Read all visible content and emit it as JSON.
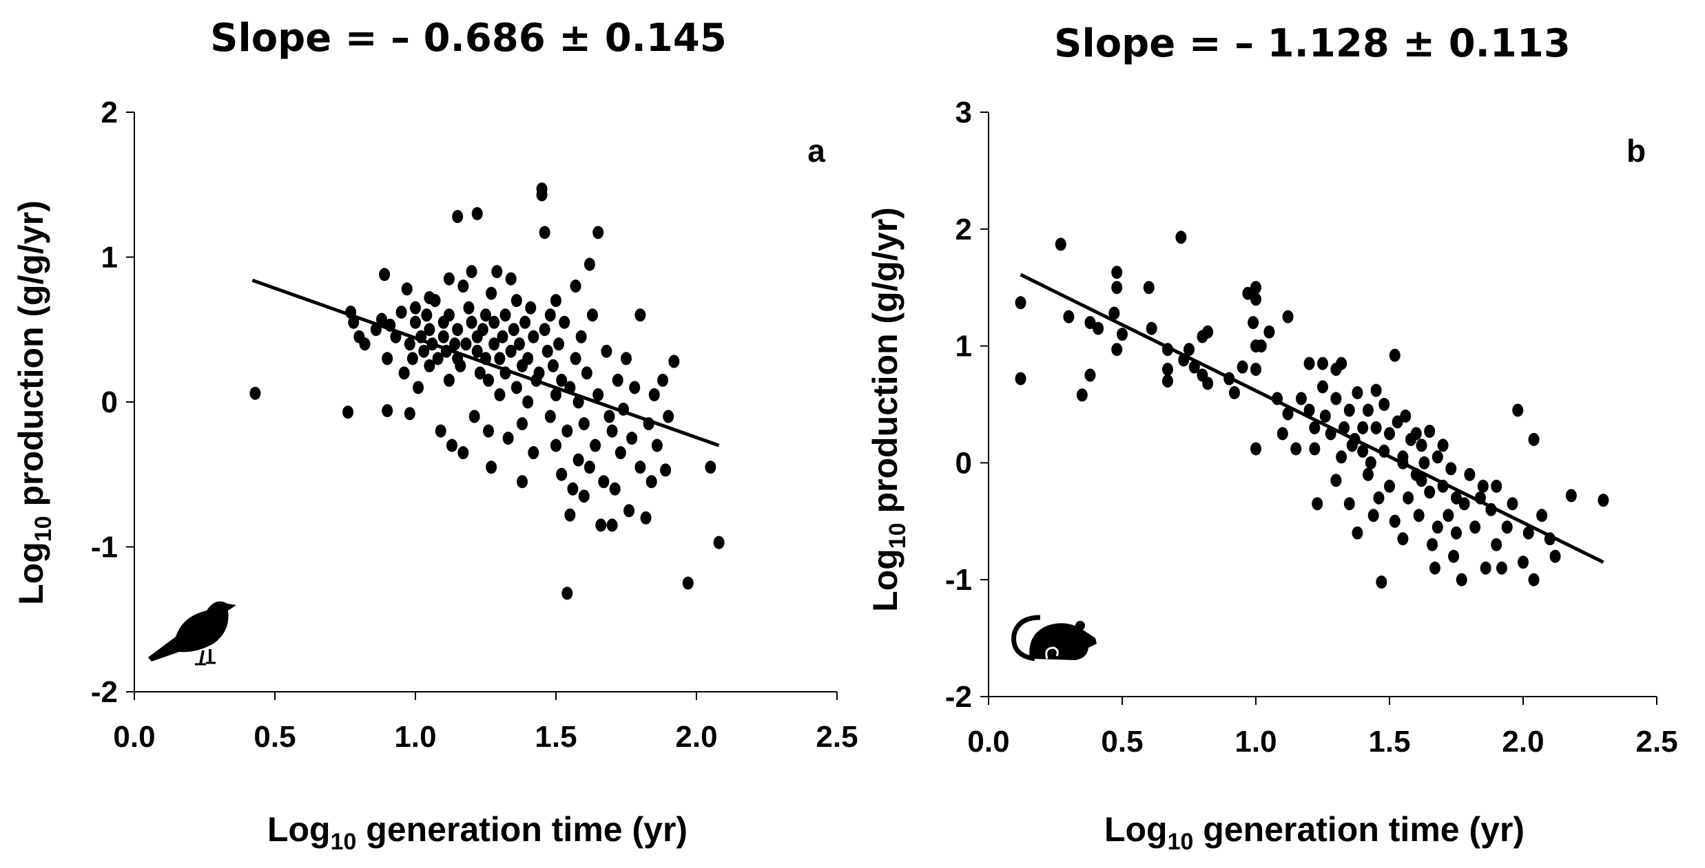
{
  "chart_data": [
    {
      "type": "scatter",
      "panel_label": "a",
      "title": "Slope = – 0.686 ± 0.145",
      "xlabel": {
        "main": "Log",
        "sub": "10",
        "rest": " generation time (yr)"
      },
      "ylabel": {
        "main": "Log",
        "sub": "10",
        "rest": " production (g/g/yr)"
      },
      "xlim": [
        0.0,
        2.5
      ],
      "ylim": [
        -2,
        2
      ],
      "xticks": [
        "0.0",
        "0.5",
        "1.0",
        "1.5",
        "2.0",
        "2.5"
      ],
      "yticks": [
        "-2",
        "-1",
        "0",
        "1",
        "2"
      ],
      "grid": false,
      "icon": "bird-icon",
      "regression_line": {
        "x": [
          0.42,
          2.08
        ],
        "y": [
          0.84,
          -0.3
        ]
      },
      "points": [
        [
          0.43,
          0.06
        ],
        [
          0.76,
          -0.07
        ],
        [
          0.77,
          0.62
        ],
        [
          0.78,
          0.55
        ],
        [
          0.8,
          0.45
        ],
        [
          0.82,
          0.4
        ],
        [
          0.86,
          0.5
        ],
        [
          0.88,
          0.57
        ],
        [
          0.89,
          0.88
        ],
        [
          0.9,
          0.3
        ],
        [
          0.9,
          -0.06
        ],
        [
          0.91,
          0.53
        ],
        [
          0.93,
          0.45
        ],
        [
          0.95,
          0.62
        ],
        [
          0.96,
          0.2
        ],
        [
          0.97,
          0.78
        ],
        [
          0.98,
          -0.08
        ],
        [
          0.98,
          0.4
        ],
        [
          0.99,
          0.3
        ],
        [
          1.0,
          0.55
        ],
        [
          1.0,
          0.65
        ],
        [
          1.01,
          0.1
        ],
        [
          1.02,
          0.45
        ],
        [
          1.03,
          0.35
        ],
        [
          1.04,
          0.6
        ],
        [
          1.05,
          0.25
        ],
        [
          1.05,
          0.5
        ],
        [
          1.06,
          0.4
        ],
        [
          1.07,
          0.7
        ],
        [
          1.08,
          0.3
        ],
        [
          1.09,
          -0.2
        ],
        [
          1.1,
          0.45
        ],
        [
          1.1,
          0.55
        ],
        [
          1.11,
          0.35
        ],
        [
          1.12,
          0.15
        ],
        [
          1.12,
          0.6
        ],
        [
          1.13,
          -0.3
        ],
        [
          1.14,
          0.4
        ],
        [
          1.15,
          0.5
        ],
        [
          1.15,
          0.3
        ],
        [
          1.16,
          0.25
        ],
        [
          1.17,
          0.8
        ],
        [
          1.17,
          -0.35
        ],
        [
          1.18,
          0.4
        ],
        [
          1.19,
          0.65
        ],
        [
          1.2,
          0.55
        ],
        [
          1.2,
          0.9
        ],
        [
          1.21,
          -0.1
        ],
        [
          1.22,
          0.35
        ],
        [
          1.22,
          0.45
        ],
        [
          1.23,
          0.2
        ],
        [
          1.24,
          0.5
        ],
        [
          1.25,
          0.6
        ],
        [
          1.25,
          0.3
        ],
        [
          1.26,
          0.15
        ],
        [
          1.26,
          -0.2
        ],
        [
          1.27,
          0.75
        ],
        [
          1.28,
          0.4
        ],
        [
          1.28,
          0.55
        ],
        [
          1.29,
          0.9
        ],
        [
          1.3,
          0.3
        ],
        [
          1.3,
          0.05
        ],
        [
          1.31,
          0.45
        ],
        [
          1.32,
          0.2
        ],
        [
          1.32,
          0.6
        ],
        [
          1.33,
          -0.25
        ],
        [
          1.34,
          0.35
        ],
        [
          1.35,
          0.5
        ],
        [
          1.36,
          0.1
        ],
        [
          1.36,
          0.7
        ],
        [
          1.37,
          0.4
        ],
        [
          1.38,
          -0.15
        ],
        [
          1.38,
          0.25
        ],
        [
          1.39,
          0.55
        ],
        [
          1.4,
          0.3
        ],
        [
          1.4,
          0.0
        ],
        [
          1.41,
          0.65
        ],
        [
          1.42,
          0.45
        ],
        [
          1.42,
          -0.35
        ],
        [
          1.43,
          0.15
        ],
        [
          1.44,
          0.2
        ],
        [
          1.45,
          1.47
        ],
        [
          1.45,
          1.43
        ],
        [
          1.46,
          1.17
        ],
        [
          1.46,
          0.5
        ],
        [
          1.47,
          0.35
        ],
        [
          1.48,
          -0.1
        ],
        [
          1.48,
          0.6
        ],
        [
          1.49,
          0.25
        ],
        [
          1.5,
          0.05
        ],
        [
          1.5,
          -0.3
        ],
        [
          1.51,
          0.4
        ],
        [
          1.52,
          0.15
        ],
        [
          1.52,
          -0.5
        ],
        [
          1.53,
          0.55
        ],
        [
          1.54,
          -1.32
        ],
        [
          1.54,
          -0.2
        ],
        [
          1.55,
          0.1
        ],
        [
          1.56,
          -0.6
        ],
        [
          1.57,
          0.3
        ],
        [
          1.58,
          0.0
        ],
        [
          1.58,
          -0.4
        ],
        [
          1.59,
          0.45
        ],
        [
          1.6,
          -0.15
        ],
        [
          1.61,
          0.2
        ],
        [
          1.62,
          -0.45
        ],
        [
          1.62,
          0.95
        ],
        [
          1.63,
          0.6
        ],
        [
          1.64,
          -0.3
        ],
        [
          1.65,
          1.17
        ],
        [
          1.65,
          0.05
        ],
        [
          1.66,
          -0.85
        ],
        [
          1.67,
          -0.55
        ],
        [
          1.68,
          0.35
        ],
        [
          1.69,
          -0.1
        ],
        [
          1.7,
          -0.2
        ],
        [
          1.71,
          -0.6
        ],
        [
          1.72,
          0.15
        ],
        [
          1.73,
          -0.35
        ],
        [
          1.74,
          -0.05
        ],
        [
          1.75,
          0.3
        ],
        [
          1.76,
          -0.75
        ],
        [
          1.77,
          -0.25
        ],
        [
          1.78,
          0.1
        ],
        [
          1.8,
          0.6
        ],
        [
          1.8,
          -0.45
        ],
        [
          1.82,
          -0.8
        ],
        [
          1.83,
          -0.15
        ],
        [
          1.84,
          -0.55
        ],
        [
          1.85,
          0.05
        ],
        [
          1.86,
          -0.3
        ],
        [
          1.88,
          0.15
        ],
        [
          1.89,
          -0.47
        ],
        [
          1.9,
          -0.1
        ],
        [
          1.92,
          0.28
        ],
        [
          1.97,
          -1.25
        ],
        [
          2.05,
          -0.45
        ],
        [
          2.08,
          -0.97
        ],
        [
          1.15,
          1.28
        ],
        [
          1.22,
          1.3
        ],
        [
          1.05,
          0.72
        ],
        [
          1.12,
          0.85
        ],
        [
          1.34,
          0.85
        ],
        [
          1.38,
          -0.55
        ],
        [
          1.55,
          -0.78
        ],
        [
          1.7,
          -0.85
        ],
        [
          1.57,
          0.8
        ],
        [
          1.5,
          0.7
        ],
        [
          1.27,
          -0.45
        ],
        [
          1.6,
          -0.65
        ]
      ]
    },
    {
      "type": "scatter",
      "panel_label": "b",
      "title": "Slope = – 1.128 ± 0.113",
      "xlabel": {
        "main": "Log",
        "sub": "10",
        "rest": " generation time (yr)"
      },
      "ylabel": {
        "main": "Log",
        "sub": "10",
        "rest": " production (g/g/yr)"
      },
      "xlim": [
        0.0,
        2.5
      ],
      "ylim": [
        -2,
        3
      ],
      "xticks": [
        "0.0",
        "0.5",
        "1.0",
        "1.5",
        "2.0",
        "2.5"
      ],
      "yticks": [
        "-2",
        "-1",
        "0",
        "1",
        "2",
        "3"
      ],
      "grid": false,
      "icon": "rat-icon",
      "regression_line": {
        "x": [
          0.12,
          2.3
        ],
        "y": [
          1.61,
          -0.85
        ]
      },
      "points": [
        [
          0.12,
          1.37
        ],
        [
          0.12,
          0.72
        ],
        [
          0.27,
          1.87
        ],
        [
          0.3,
          1.25
        ],
        [
          0.35,
          0.58
        ],
        [
          0.38,
          0.75
        ],
        [
          0.38,
          1.2
        ],
        [
          0.41,
          1.15
        ],
        [
          0.47,
          1.28
        ],
        [
          0.48,
          0.97
        ],
        [
          0.48,
          1.5
        ],
        [
          0.48,
          1.63
        ],
        [
          0.5,
          1.1
        ],
        [
          0.6,
          1.5
        ],
        [
          0.61,
          1.15
        ],
        [
          0.67,
          0.97
        ],
        [
          0.67,
          0.8
        ],
        [
          0.67,
          0.7
        ],
        [
          0.72,
          1.93
        ],
        [
          0.73,
          0.88
        ],
        [
          0.75,
          0.97
        ],
        [
          0.77,
          0.82
        ],
        [
          0.8,
          0.75
        ],
        [
          0.8,
          1.08
        ],
        [
          0.82,
          1.12
        ],
        [
          0.82,
          0.68
        ],
        [
          0.9,
          0.72
        ],
        [
          0.92,
          0.6
        ],
        [
          0.95,
          0.82
        ],
        [
          0.97,
          1.45
        ],
        [
          0.99,
          1.2
        ],
        [
          1.0,
          1.5
        ],
        [
          1.0,
          1.4
        ],
        [
          1.0,
          1.0
        ],
        [
          1.0,
          0.8
        ],
        [
          1.0,
          0.12
        ],
        [
          1.02,
          1.0
        ],
        [
          1.05,
          1.12
        ],
        [
          1.08,
          0.55
        ],
        [
          1.1,
          0.25
        ],
        [
          1.12,
          0.42
        ],
        [
          1.12,
          1.25
        ],
        [
          1.15,
          0.12
        ],
        [
          1.17,
          0.55
        ],
        [
          1.2,
          0.85
        ],
        [
          1.2,
          0.45
        ],
        [
          1.22,
          0.3
        ],
        [
          1.22,
          0.12
        ],
        [
          1.23,
          -0.35
        ],
        [
          1.25,
          0.65
        ],
        [
          1.25,
          0.85
        ],
        [
          1.26,
          0.4
        ],
        [
          1.28,
          0.25
        ],
        [
          1.3,
          0.55
        ],
        [
          1.3,
          -0.15
        ],
        [
          1.32,
          0.85
        ],
        [
          1.32,
          0.05
        ],
        [
          1.33,
          0.3
        ],
        [
          1.35,
          0.45
        ],
        [
          1.35,
          -0.35
        ],
        [
          1.37,
          0.2
        ],
        [
          1.38,
          0.6
        ],
        [
          1.38,
          -0.6
        ],
        [
          1.4,
          0.3
        ],
        [
          1.4,
          0.1
        ],
        [
          1.42,
          0.45
        ],
        [
          1.42,
          -0.1
        ],
        [
          1.43,
          0.0
        ],
        [
          1.45,
          0.62
        ],
        [
          1.45,
          0.3
        ],
        [
          1.46,
          -0.3
        ],
        [
          1.47,
          -1.02
        ],
        [
          1.48,
          0.1
        ],
        [
          1.48,
          0.5
        ],
        [
          1.5,
          -0.2
        ],
        [
          1.5,
          0.25
        ],
        [
          1.52,
          0.92
        ],
        [
          1.52,
          -0.5
        ],
        [
          1.53,
          0.35
        ],
        [
          1.55,
          0.05
        ],
        [
          1.55,
          -0.65
        ],
        [
          1.56,
          0.4
        ],
        [
          1.57,
          -0.3
        ],
        [
          1.58,
          0.2
        ],
        [
          1.6,
          -0.1
        ],
        [
          1.6,
          0.25
        ],
        [
          1.61,
          -0.45
        ],
        [
          1.62,
          0.15
        ],
        [
          1.63,
          0.0
        ],
        [
          1.65,
          -0.25
        ],
        [
          1.65,
          0.27
        ],
        [
          1.67,
          -0.9
        ],
        [
          1.68,
          -0.55
        ],
        [
          1.68,
          0.05
        ],
        [
          1.7,
          -0.2
        ],
        [
          1.7,
          0.15
        ],
        [
          1.72,
          -0.45
        ],
        [
          1.73,
          -0.05
        ],
        [
          1.75,
          -0.3
        ],
        [
          1.75,
          -0.6
        ],
        [
          1.77,
          -1.0
        ],
        [
          1.78,
          -0.35
        ],
        [
          1.8,
          -0.1
        ],
        [
          1.82,
          -0.55
        ],
        [
          1.84,
          -0.3
        ],
        [
          1.85,
          -0.2
        ],
        [
          1.86,
          -0.9
        ],
        [
          1.88,
          -0.4
        ],
        [
          1.9,
          -0.7
        ],
        [
          1.9,
          -0.2
        ],
        [
          1.92,
          -0.9
        ],
        [
          1.94,
          -0.55
        ],
        [
          1.96,
          -0.35
        ],
        [
          1.98,
          0.45
        ],
        [
          2.0,
          -0.85
        ],
        [
          2.02,
          -0.6
        ],
        [
          2.04,
          -1.0
        ],
        [
          2.04,
          0.2
        ],
        [
          2.07,
          -0.45
        ],
        [
          2.1,
          -0.65
        ],
        [
          2.12,
          -0.8
        ],
        [
          2.18,
          -0.28
        ],
        [
          2.3,
          -0.32
        ],
        [
          1.3,
          0.8
        ],
        [
          1.55,
          0.0
        ],
        [
          1.62,
          -0.15
        ],
        [
          1.44,
          -0.45
        ],
        [
          1.36,
          0.15
        ],
        [
          1.74,
          -0.8
        ],
        [
          1.66,
          -0.7
        ]
      ]
    }
  ]
}
